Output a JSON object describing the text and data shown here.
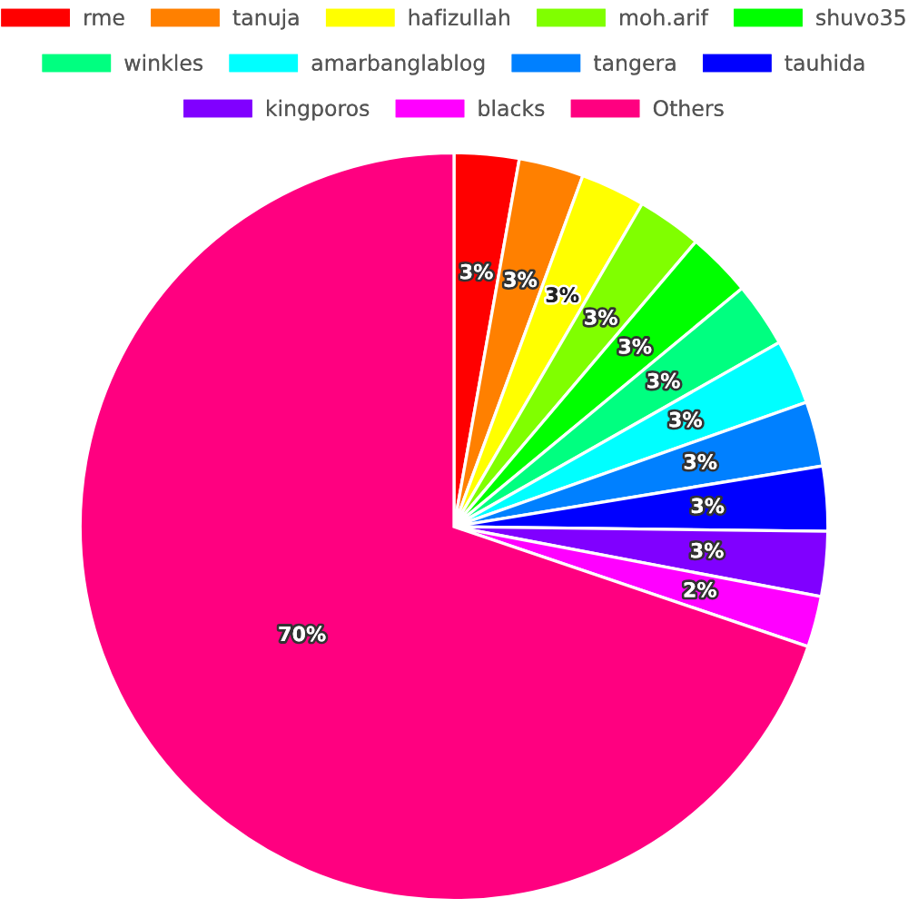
{
  "chart_data": {
    "type": "pie",
    "categories": [
      "rme",
      "tanuja",
      "hafizullah",
      "moh.arif",
      "shuvo35",
      "winkles",
      "amarbanglablog",
      "tangera",
      "tauhida",
      "kingporos",
      "blacks",
      "Others"
    ],
    "values": [
      2.8,
      2.8,
      2.8,
      2.8,
      2.8,
      2.8,
      2.8,
      2.8,
      2.8,
      2.8,
      2.2,
      69.8
    ],
    "value_labels": [
      "3%",
      "3%",
      "3%",
      "3%",
      "3%",
      "3%",
      "3%",
      "3%",
      "3%",
      "3%",
      "2%",
      "70%"
    ],
    "colors": [
      "#ff0000",
      "#ff8000",
      "#ffff00",
      "#80ff00",
      "#00ff00",
      "#00ff80",
      "#00ffff",
      "#0080ff",
      "#0000ff",
      "#8000ff",
      "#ff00ff",
      "#ff0080"
    ],
    "legend": "top"
  }
}
